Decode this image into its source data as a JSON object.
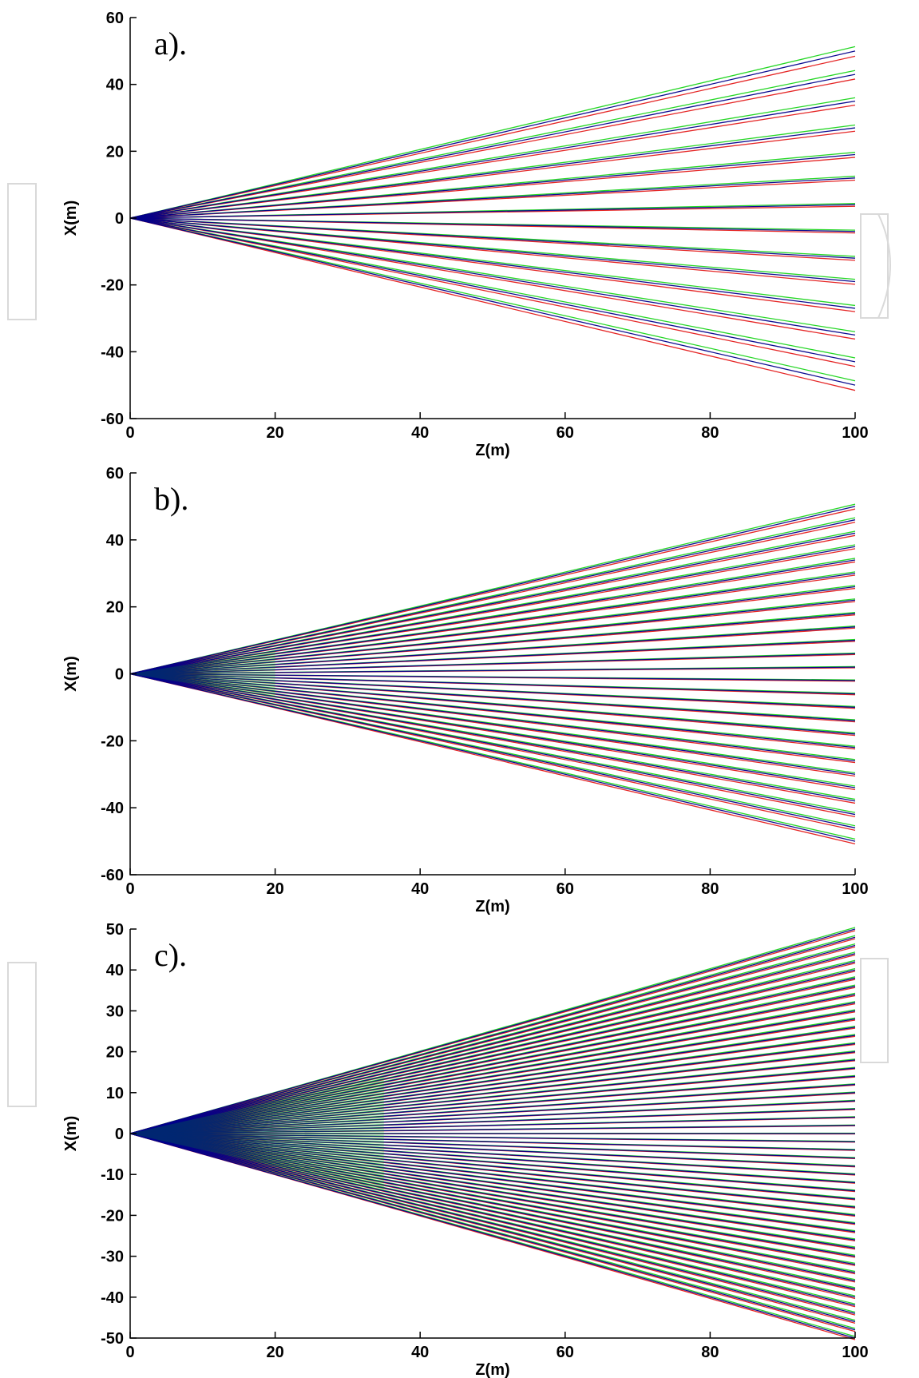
{
  "chart_data": [
    {
      "type": "line",
      "panel_label": "a).",
      "xlabel": "Z(m)",
      "ylabel": "X(m)",
      "xlim": [
        0,
        100
      ],
      "ylim": [
        -60,
        60
      ],
      "xticks": [
        0,
        20,
        40,
        60,
        80,
        100
      ],
      "yticks": [
        -60,
        -40,
        -20,
        0,
        20,
        40,
        60
      ],
      "grid": false,
      "colors": {
        "red": "#e00000",
        "green": "#00d000",
        "blue": "#00008b"
      },
      "ray_ends": [
        -50,
        -43,
        -35,
        -27,
        -19,
        -12,
        -4,
        4,
        12,
        19,
        27,
        35,
        43,
        50
      ],
      "series_offsets": {
        "red": -1.2,
        "green": 1.0,
        "blue": 0
      }
    },
    {
      "type": "line",
      "panel_label": "b).",
      "xlabel": "Z(m)",
      "ylabel": "X(m)",
      "xlim": [
        0,
        100
      ],
      "ylim": [
        -60,
        60
      ],
      "xticks": [
        0,
        20,
        40,
        60,
        80,
        100
      ],
      "yticks": [
        -60,
        -40,
        -20,
        0,
        20,
        40,
        60
      ],
      "grid": false,
      "colors": {
        "red": "#e00000",
        "green": "#00d000",
        "blue": "#00008b"
      },
      "ray_ends": [
        -50,
        -46,
        -42,
        -38,
        -34,
        -30,
        -26,
        -22,
        -18,
        -14,
        -10,
        -6,
        -2,
        2,
        6,
        10,
        14,
        18,
        22,
        26,
        30,
        34,
        38,
        42,
        46,
        50
      ],
      "series_offsets": {
        "red": -0.6,
        "green": 0.5,
        "blue": 0
      }
    },
    {
      "type": "line",
      "panel_label": "c).",
      "xlabel": "Z(m)",
      "ylabel": "X(m)",
      "xlim": [
        0,
        100
      ],
      "ylim": [
        -50,
        50
      ],
      "xticks": [
        0,
        20,
        40,
        60,
        80,
        100
      ],
      "yticks": [
        -50,
        -40,
        -30,
        -20,
        -10,
        0,
        10,
        20,
        30,
        40,
        50
      ],
      "grid": false,
      "colors": {
        "red": "#e00000",
        "green": "#00d000",
        "blue": "#00008b"
      },
      "ray_ends": [
        -50,
        -48,
        -46,
        -44,
        -42,
        -40,
        -38,
        -36,
        -34,
        -32,
        -30,
        -28,
        -26,
        -24,
        -22,
        -20,
        -18,
        -16,
        -14,
        -12,
        -10,
        -8,
        -6,
        -4,
        -2,
        0,
        2,
        4,
        6,
        8,
        10,
        12,
        14,
        16,
        18,
        20,
        22,
        24,
        26,
        28,
        30,
        32,
        34,
        36,
        38,
        40,
        42,
        44,
        46,
        48,
        50
      ],
      "series_offsets": {
        "red": -0.3,
        "green": 0.3,
        "blue": 0
      }
    }
  ]
}
